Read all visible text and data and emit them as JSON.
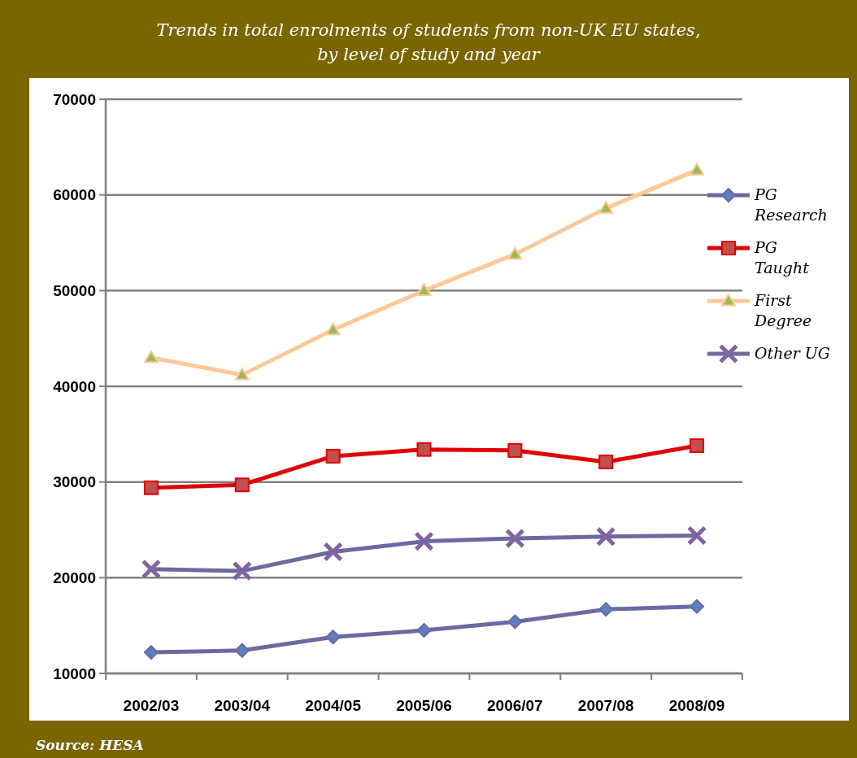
{
  "chart_data": {
    "type": "line",
    "title": "Trends in total enrolments of students from non-UK EU states,\nby level of study and year",
    "categories": [
      "2002/03",
      "2003/04",
      "2004/05",
      "2005/06",
      "2006/07",
      "2007/08",
      "2008/09"
    ],
    "series": [
      {
        "name": "PG Research",
        "color": "#6b6aa0",
        "marker": "diamond",
        "values": [
          12200,
          12400,
          13800,
          14500,
          15400,
          16700,
          17000
        ]
      },
      {
        "name": "PG Taught",
        "color": "#e00000",
        "marker": "square",
        "values": [
          29400,
          29700,
          32700,
          33400,
          33300,
          32100,
          33800
        ]
      },
      {
        "name": "First Degree",
        "color": "#fdc997",
        "marker": "triangle",
        "values": [
          43000,
          41200,
          45900,
          50000,
          53800,
          58600,
          62600
        ]
      },
      {
        "name": "Other UG",
        "color": "#6b6aa0",
        "marker": "cross",
        "values": [
          20900,
          20700,
          22700,
          23800,
          24100,
          24300,
          24400
        ]
      }
    ],
    "ylim": [
      10000,
      70000
    ],
    "yticks": [
      10000,
      20000,
      30000,
      40000,
      50000,
      60000,
      70000
    ],
    "grid": "y",
    "legend": "right",
    "line_style": "solid",
    "annotations": [
      "Source: HESA"
    ]
  }
}
